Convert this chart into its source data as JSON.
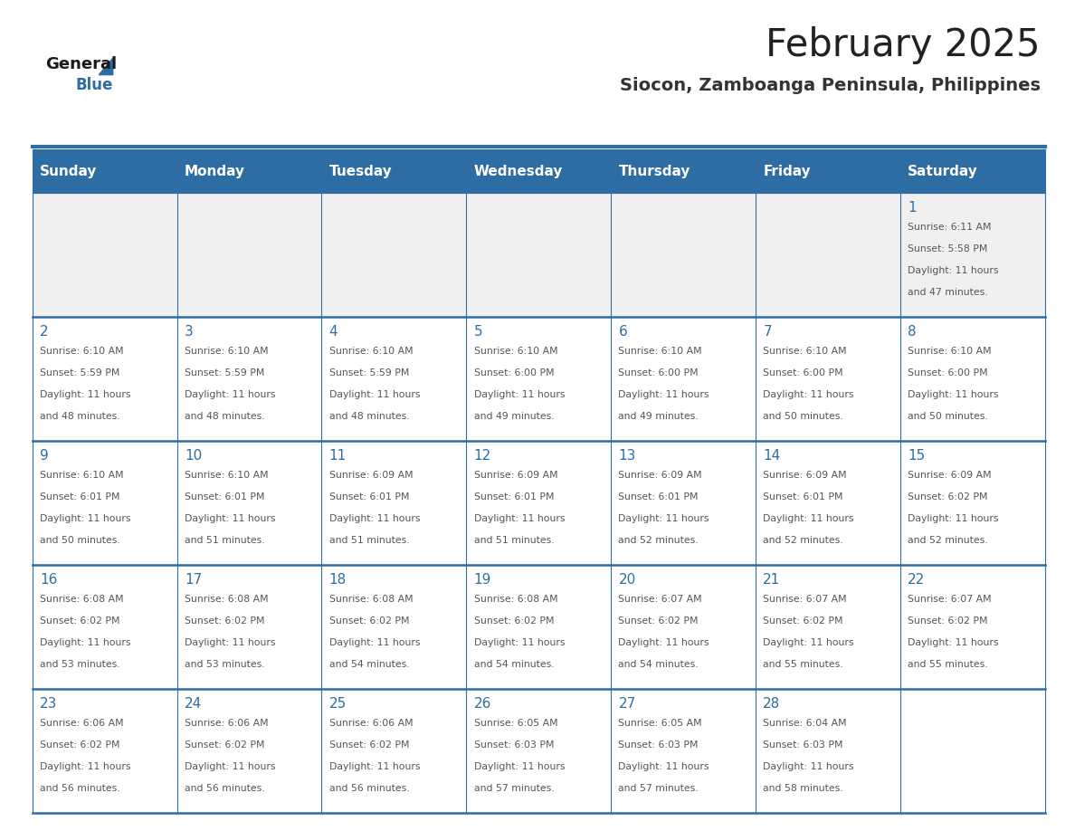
{
  "title": "February 2025",
  "subtitle": "Siocon, Zamboanga Peninsula, Philippines",
  "days_of_week": [
    "Sunday",
    "Monday",
    "Tuesday",
    "Wednesday",
    "Thursday",
    "Friday",
    "Saturday"
  ],
  "header_bg": "#2E6DA4",
  "header_text_color": "#FFFFFF",
  "cell_bg_light": "#FFFFFF",
  "cell_bg_gray": "#F0F0F0",
  "border_color": "#2E6DA4",
  "day_num_color": "#2E6DA4",
  "info_text_color": "#555555",
  "title_color": "#222222",
  "subtitle_color": "#333333",
  "logo_general_color": "#1a1a1a",
  "logo_blue_color": "#2E6DA4",
  "calendar_data": [
    {
      "day": 1,
      "col": 6,
      "row": 0,
      "sunrise": "6:11 AM",
      "sunset": "5:58 PM",
      "daylight_h": "11 hours",
      "daylight_m": "and 47 minutes."
    },
    {
      "day": 2,
      "col": 0,
      "row": 1,
      "sunrise": "6:10 AM",
      "sunset": "5:59 PM",
      "daylight_h": "11 hours",
      "daylight_m": "and 48 minutes."
    },
    {
      "day": 3,
      "col": 1,
      "row": 1,
      "sunrise": "6:10 AM",
      "sunset": "5:59 PM",
      "daylight_h": "11 hours",
      "daylight_m": "and 48 minutes."
    },
    {
      "day": 4,
      "col": 2,
      "row": 1,
      "sunrise": "6:10 AM",
      "sunset": "5:59 PM",
      "daylight_h": "11 hours",
      "daylight_m": "and 48 minutes."
    },
    {
      "day": 5,
      "col": 3,
      "row": 1,
      "sunrise": "6:10 AM",
      "sunset": "6:00 PM",
      "daylight_h": "11 hours",
      "daylight_m": "and 49 minutes."
    },
    {
      "day": 6,
      "col": 4,
      "row": 1,
      "sunrise": "6:10 AM",
      "sunset": "6:00 PM",
      "daylight_h": "11 hours",
      "daylight_m": "and 49 minutes."
    },
    {
      "day": 7,
      "col": 5,
      "row": 1,
      "sunrise": "6:10 AM",
      "sunset": "6:00 PM",
      "daylight_h": "11 hours",
      "daylight_m": "and 50 minutes."
    },
    {
      "day": 8,
      "col": 6,
      "row": 1,
      "sunrise": "6:10 AM",
      "sunset": "6:00 PM",
      "daylight_h": "11 hours",
      "daylight_m": "and 50 minutes."
    },
    {
      "day": 9,
      "col": 0,
      "row": 2,
      "sunrise": "6:10 AM",
      "sunset": "6:01 PM",
      "daylight_h": "11 hours",
      "daylight_m": "and 50 minutes."
    },
    {
      "day": 10,
      "col": 1,
      "row": 2,
      "sunrise": "6:10 AM",
      "sunset": "6:01 PM",
      "daylight_h": "11 hours",
      "daylight_m": "and 51 minutes."
    },
    {
      "day": 11,
      "col": 2,
      "row": 2,
      "sunrise": "6:09 AM",
      "sunset": "6:01 PM",
      "daylight_h": "11 hours",
      "daylight_m": "and 51 minutes."
    },
    {
      "day": 12,
      "col": 3,
      "row": 2,
      "sunrise": "6:09 AM",
      "sunset": "6:01 PM",
      "daylight_h": "11 hours",
      "daylight_m": "and 51 minutes."
    },
    {
      "day": 13,
      "col": 4,
      "row": 2,
      "sunrise": "6:09 AM",
      "sunset": "6:01 PM",
      "daylight_h": "11 hours",
      "daylight_m": "and 52 minutes."
    },
    {
      "day": 14,
      "col": 5,
      "row": 2,
      "sunrise": "6:09 AM",
      "sunset": "6:01 PM",
      "daylight_h": "11 hours",
      "daylight_m": "and 52 minutes."
    },
    {
      "day": 15,
      "col": 6,
      "row": 2,
      "sunrise": "6:09 AM",
      "sunset": "6:02 PM",
      "daylight_h": "11 hours",
      "daylight_m": "and 52 minutes."
    },
    {
      "day": 16,
      "col": 0,
      "row": 3,
      "sunrise": "6:08 AM",
      "sunset": "6:02 PM",
      "daylight_h": "11 hours",
      "daylight_m": "and 53 minutes."
    },
    {
      "day": 17,
      "col": 1,
      "row": 3,
      "sunrise": "6:08 AM",
      "sunset": "6:02 PM",
      "daylight_h": "11 hours",
      "daylight_m": "and 53 minutes."
    },
    {
      "day": 18,
      "col": 2,
      "row": 3,
      "sunrise": "6:08 AM",
      "sunset": "6:02 PM",
      "daylight_h": "11 hours",
      "daylight_m": "and 54 minutes."
    },
    {
      "day": 19,
      "col": 3,
      "row": 3,
      "sunrise": "6:08 AM",
      "sunset": "6:02 PM",
      "daylight_h": "11 hours",
      "daylight_m": "and 54 minutes."
    },
    {
      "day": 20,
      "col": 4,
      "row": 3,
      "sunrise": "6:07 AM",
      "sunset": "6:02 PM",
      "daylight_h": "11 hours",
      "daylight_m": "and 54 minutes."
    },
    {
      "day": 21,
      "col": 5,
      "row": 3,
      "sunrise": "6:07 AM",
      "sunset": "6:02 PM",
      "daylight_h": "11 hours",
      "daylight_m": "and 55 minutes."
    },
    {
      "day": 22,
      "col": 6,
      "row": 3,
      "sunrise": "6:07 AM",
      "sunset": "6:02 PM",
      "daylight_h": "11 hours",
      "daylight_m": "and 55 minutes."
    },
    {
      "day": 23,
      "col": 0,
      "row": 4,
      "sunrise": "6:06 AM",
      "sunset": "6:02 PM",
      "daylight_h": "11 hours",
      "daylight_m": "and 56 minutes."
    },
    {
      "day": 24,
      "col": 1,
      "row": 4,
      "sunrise": "6:06 AM",
      "sunset": "6:02 PM",
      "daylight_h": "11 hours",
      "daylight_m": "and 56 minutes."
    },
    {
      "day": 25,
      "col": 2,
      "row": 4,
      "sunrise": "6:06 AM",
      "sunset": "6:02 PM",
      "daylight_h": "11 hours",
      "daylight_m": "and 56 minutes."
    },
    {
      "day": 26,
      "col": 3,
      "row": 4,
      "sunrise": "6:05 AM",
      "sunset": "6:03 PM",
      "daylight_h": "11 hours",
      "daylight_m": "and 57 minutes."
    },
    {
      "day": 27,
      "col": 4,
      "row": 4,
      "sunrise": "6:05 AM",
      "sunset": "6:03 PM",
      "daylight_h": "11 hours",
      "daylight_m": "and 57 minutes."
    },
    {
      "day": 28,
      "col": 5,
      "row": 4,
      "sunrise": "6:04 AM",
      "sunset": "6:03 PM",
      "daylight_h": "11 hours",
      "daylight_m": "and 58 minutes."
    }
  ]
}
